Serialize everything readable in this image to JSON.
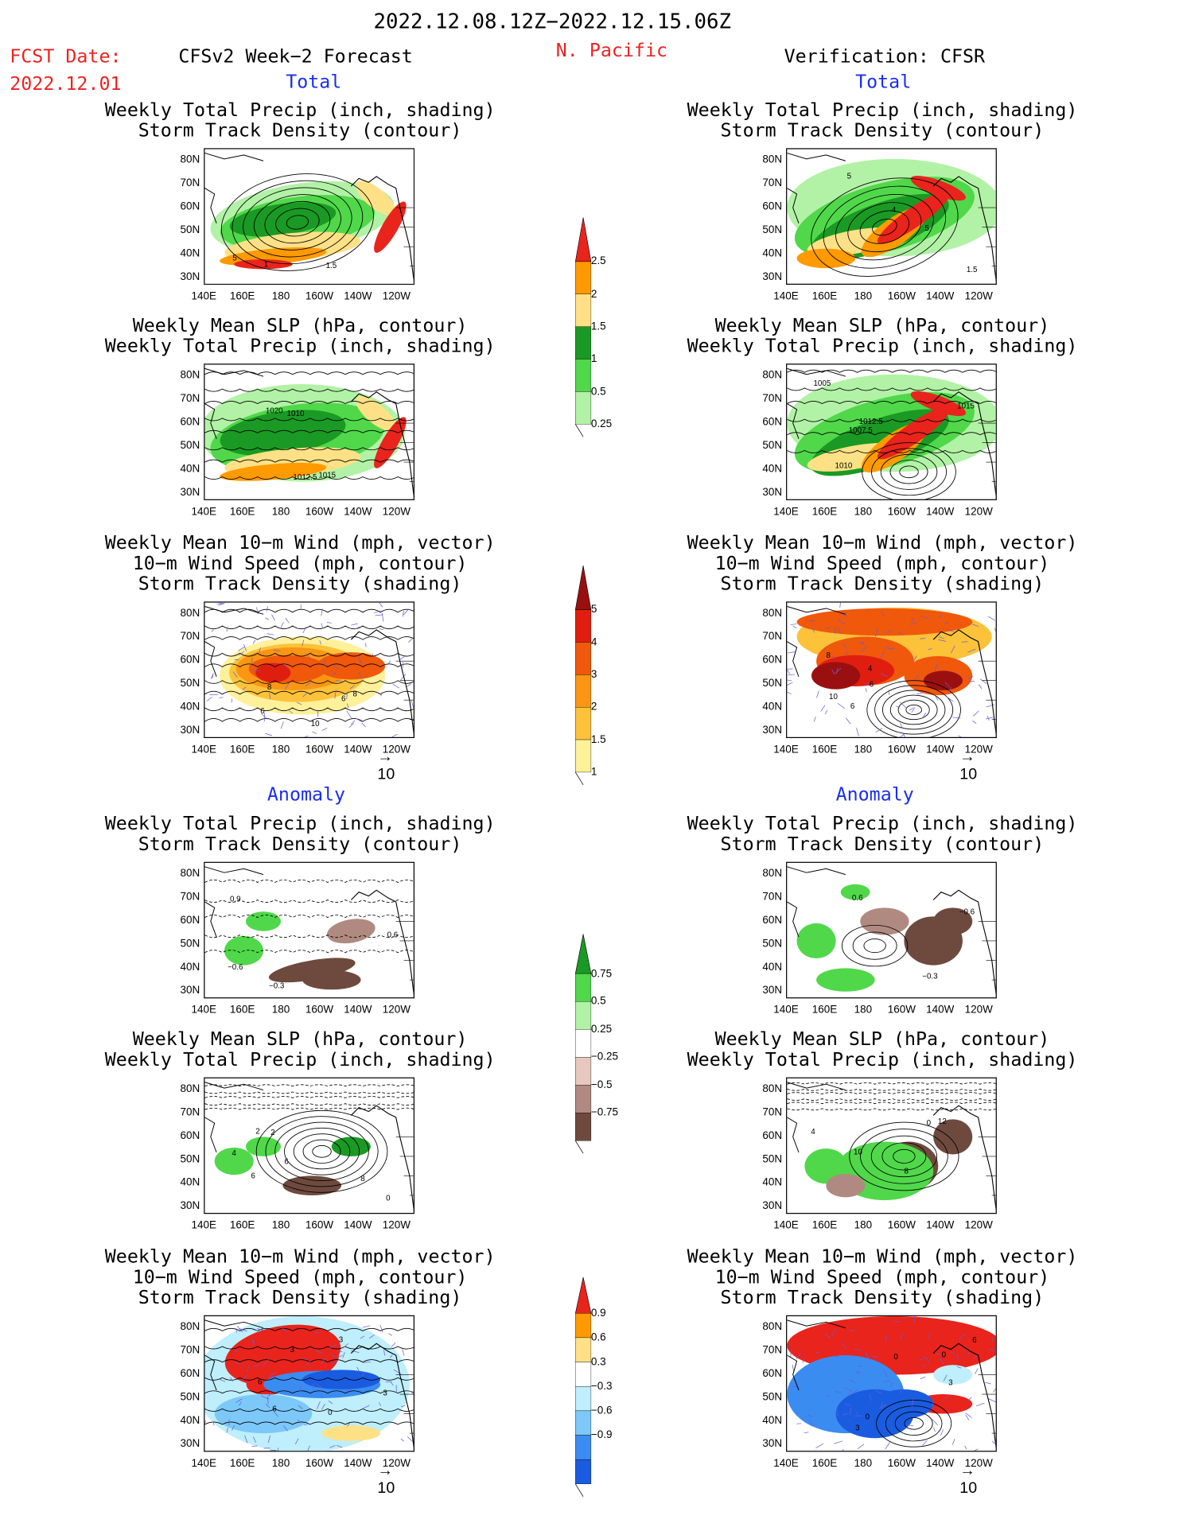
{
  "header": {
    "date_range": "2022.12.08.12Z−2022.12.15.06Z",
    "fcst_label": "FCST Date:",
    "fcst_date": "2022.12.01",
    "model": "CFSv2 Week−2 Forecast",
    "region": "N. Pacific",
    "verification": "Verification: CFSR"
  },
  "sections": {
    "total": "Total",
    "anomaly": "Anomaly"
  },
  "titles": {
    "precip_storm": [
      "Weekly Total Precip (inch, shading)",
      "Storm Track Density (contour)"
    ],
    "slp_precip": [
      "Weekly Mean SLP (hPa, contour)",
      "Weekly Total Precip (inch, shading)"
    ],
    "wind_storm": [
      "Weekly Mean 10−m Wind (mph, vector)",
      "10−m Wind Speed (mph, contour)",
      "Storm Track Density (shading)"
    ]
  },
  "axes": {
    "lat_ticks": [
      "80N",
      "70N",
      "60N",
      "50N",
      "40N",
      "30N"
    ],
    "lon_ticks": [
      "140E",
      "160E",
      "180",
      "160W",
      "140W",
      "120W"
    ]
  },
  "vector_ref": "10",
  "colorbars": [
    {
      "id": "precip_total",
      "labels": [
        "2.5",
        "2",
        "1.5",
        "1",
        "0.5",
        "0.25"
      ],
      "colors": [
        "#e8241c",
        "#ff9a00",
        "#fee186",
        "#1a9a24",
        "#50d84a",
        "#b2f2a6"
      ]
    },
    {
      "id": "density_total",
      "labels": [
        "5",
        "4",
        "3",
        "2",
        "1.5",
        "1"
      ],
      "colors": [
        "#9a1010",
        "#e01e10",
        "#f0580c",
        "#fa9614",
        "#fcc23a",
        "#fff09a"
      ]
    },
    {
      "id": "precip_anom",
      "labels": [
        "0.75",
        "0.5",
        "0.25",
        "−0.25",
        "−0.5",
        "−0.75"
      ],
      "colors": [
        "#1a9a24",
        "#50d84a",
        "#b2f2a6",
        "#ffffff",
        "#e6c8c0",
        "#b08a80",
        "#6e4a3e"
      ]
    },
    {
      "id": "density_anom",
      "labels": [
        "0.9",
        "0.6",
        "0.3",
        "−0.3",
        "−0.6",
        "−0.9"
      ],
      "colors": [
        "#e8241c",
        "#ff9a00",
        "#fee186",
        "#ffffff",
        "#bfeefc",
        "#7cc8f8",
        "#3b8cf0",
        "#1a5ce0"
      ]
    }
  ],
  "panels": [
    {
      "id": "fc-total-precip",
      "contour_labels": [
        "1",
        "1.5",
        "5"
      ]
    },
    {
      "id": "ob-total-precip",
      "contour_labels": [
        "5",
        "4",
        "5",
        "1.5"
      ]
    },
    {
      "id": "fc-total-slp",
      "contour_labels": [
        "1020",
        "1012.5",
        "1010",
        "1015"
      ]
    },
    {
      "id": "ob-total-slp",
      "contour_labels": [
        "1007.5",
        "1012.5",
        "1005",
        "1010",
        "1015"
      ]
    },
    {
      "id": "fc-total-wind",
      "contour_labels": [
        "8",
        "6",
        "6",
        "8",
        "10"
      ]
    },
    {
      "id": "ob-total-wind",
      "contour_labels": [
        "6",
        "8",
        "4",
        "6",
        "10"
      ]
    },
    {
      "id": "fc-anom-precip",
      "contour_labels": [
        "−0.3",
        "−0.6",
        "0.9",
        "0.6"
      ]
    },
    {
      "id": "ob-anom-precip",
      "contour_labels": [
        "0.6",
        "−0.6",
        "−0.3"
      ]
    },
    {
      "id": "fc-anom-slp",
      "contour_labels": [
        "2",
        "8",
        "6",
        "2",
        "0",
        "6",
        "4"
      ]
    },
    {
      "id": "ob-anom-slp",
      "contour_labels": [
        "10",
        "0",
        "4",
        "12",
        "8"
      ]
    },
    {
      "id": "fc-anom-wind",
      "contour_labels": [
        "6",
        "0",
        "3",
        "3",
        "6",
        "3"
      ]
    },
    {
      "id": "ob-anom-wind",
      "contour_labels": [
        "3",
        "0",
        "0",
        "6",
        "0",
        "3"
      ]
    }
  ]
}
